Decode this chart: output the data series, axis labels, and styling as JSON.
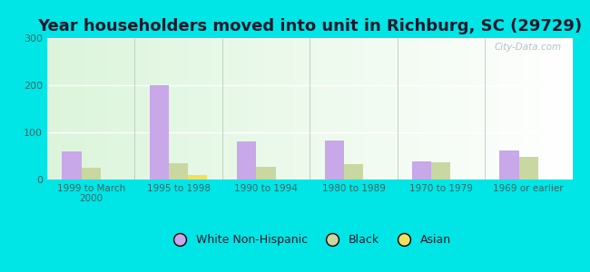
{
  "title": "Year householders moved into unit in Richburg, SC (29729)",
  "categories": [
    "1999 to March\n2000",
    "1995 to 1998",
    "1990 to 1994",
    "1980 to 1989",
    "1970 to 1979",
    "1969 or earlier"
  ],
  "white": [
    60,
    200,
    80,
    82,
    38,
    62
  ],
  "black": [
    25,
    35,
    27,
    33,
    37,
    48
  ],
  "asian": [
    0,
    10,
    0,
    0,
    0,
    0
  ],
  "white_color": "#c8a8e8",
  "black_color": "#c8d8a0",
  "asian_color": "#f0e060",
  "ylim": [
    0,
    300
  ],
  "yticks": [
    0,
    100,
    200,
    300
  ],
  "bg_outer": "#00e5e5",
  "watermark": "City-Data.com",
  "bar_width": 0.22,
  "title_fontsize": 13,
  "legend_labels": [
    "White Non-Hispanic",
    "Black",
    "Asian"
  ]
}
